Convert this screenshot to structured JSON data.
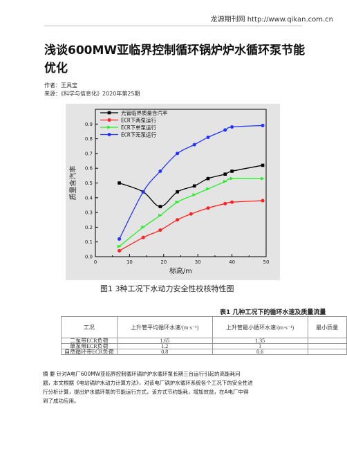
{
  "header": {
    "source": "龙源期刊网 http://www.qikan.com.cn"
  },
  "title": "浅谈600MW亚临界控制循环锅炉炉水循环泵节能优化",
  "author_line": "作者：王具宝",
  "source_line": "来源：《科学与信息化》2020年第25期",
  "figure": {
    "caption": "图1    3种工况下水动力安全性校核特性图"
  },
  "chart_data": {
    "type": "line",
    "xlabel": "标高/m",
    "ylabel": "质量含汽率",
    "xlim": [
      0,
      50
    ],
    "ylim": [
      0.0,
      1.0
    ],
    "xticks": [
      0,
      10,
      20,
      30,
      40,
      50
    ],
    "yticks": [
      0.0,
      0.1,
      0.2,
      0.3,
      0.4,
      0.5,
      0.6,
      0.7,
      0.8,
      0.9
    ],
    "grid": false,
    "legend_position": "top-left",
    "series": [
      {
        "name": "光管临界质量含汽率",
        "color": "#000000",
        "marker": "square",
        "x": [
          7,
          14,
          19,
          24,
          29,
          33,
          38,
          40,
          49
        ],
        "y": [
          0.5,
          0.44,
          0.34,
          0.44,
          0.48,
          0.53,
          0.56,
          0.58,
          0.62
        ]
      },
      {
        "name": "ECR下两泵运行",
        "color": "#ff2020",
        "marker": "circle",
        "x": [
          7,
          14,
          19,
          24,
          28,
          33,
          38,
          40,
          49
        ],
        "y": [
          0.04,
          0.13,
          0.18,
          0.25,
          0.29,
          0.33,
          0.36,
          0.37,
          0.38
        ]
      },
      {
        "name": "ECR下单泵运行",
        "color": "#22ee22",
        "marker": "triangle",
        "x": [
          7,
          14,
          19,
          24,
          29,
          33,
          38,
          40,
          49
        ],
        "y": [
          0.07,
          0.2,
          0.28,
          0.37,
          0.42,
          0.46,
          0.51,
          0.53,
          0.53
        ]
      },
      {
        "name": "ECR下无泵运行",
        "color": "#2233ff",
        "marker": "circle",
        "x": [
          7,
          14,
          19,
          24,
          29,
          33,
          38,
          40,
          49
        ],
        "y": [
          0.12,
          0.44,
          0.58,
          0.7,
          0.76,
          0.81,
          0.86,
          0.88,
          0.89
        ]
      }
    ]
  },
  "table": {
    "caption": "表1 几种工况下的循环水速及质量流量",
    "headers": [
      "工况",
      "上升管平均循环水速/(m·s⁻¹)",
      "上升管最小循环水速/(m·s⁻¹)",
      "最小质量"
    ],
    "rows": [
      [
        "二泵带ECR负荷",
        "1.65",
        "1.35",
        ""
      ],
      [
        "单泵带ECR负荷",
        "1.2",
        "1",
        ""
      ],
      [
        "自然循环带ECR负荷",
        "0.8",
        "0.6",
        ""
      ]
    ]
  },
  "abstract": {
    "lines": [
      "摘 要 针对A电厂600MW亚临界控制循环锅炉炉水循环泵长期三台运行引起的高能耗问",
      "题，本文根据《电站锅炉水动力计算方法》，对该电厂锅炉水循环系统各个工况下的安全性进",
      "行分析计算，提出炉水循环泵的节能运行方式，该方式节约能耗，增加效益，在A电厂中得",
      "到了成功应用。"
    ]
  }
}
